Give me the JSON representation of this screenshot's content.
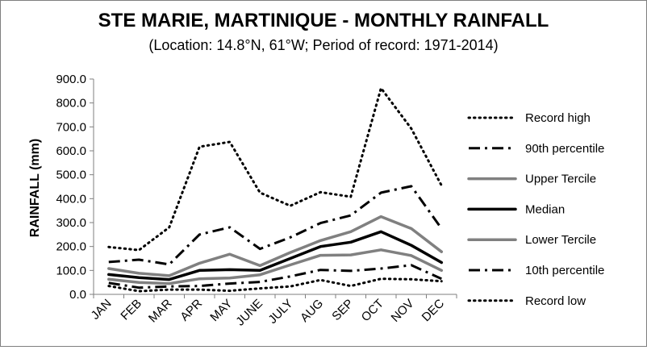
{
  "chart_data": {
    "type": "line",
    "title": "STE MARIE, MARTINIQUE - MONTHLY RAINFALL",
    "subtitle": "(Location: 14.8°N, 61°W; Period of record: 1971-2014)",
    "xlabel": "",
    "ylabel": "RAINFALL (mm)",
    "ylim": [
      0,
      900
    ],
    "y_ticks": [
      "0.0",
      "100.0",
      "200.0",
      "300.0",
      "400.0",
      "500.0",
      "600.0",
      "700.0",
      "800.0",
      "900.0"
    ],
    "categories": [
      "JAN",
      "FEB",
      "MAR",
      "APR",
      "MAY",
      "JUNE",
      "JULY",
      "AUG",
      "SEP",
      "OCT",
      "NOV",
      "DEC"
    ],
    "grid": false,
    "legend_position": "right",
    "series": [
      {
        "name": "Record high",
        "style": "dotted",
        "color": "#000000",
        "values": [
          198,
          185,
          280,
          617,
          637,
          425,
          370,
          427,
          408,
          862,
          693,
          455
        ]
      },
      {
        "name": "90th percentile",
        "style": "dashdot",
        "color": "#000000",
        "values": [
          135,
          145,
          125,
          250,
          280,
          190,
          238,
          298,
          330,
          425,
          452,
          275
        ]
      },
      {
        "name": "Upper Tercile",
        "style": "solid-thick",
        "color": "#808080",
        "values": [
          108,
          88,
          78,
          130,
          168,
          120,
          175,
          225,
          262,
          325,
          275,
          178
        ]
      },
      {
        "name": "Median",
        "style": "solid-thick",
        "color": "#000000",
        "values": [
          83,
          70,
          62,
          100,
          103,
          100,
          150,
          200,
          218,
          262,
          205,
          133
        ]
      },
      {
        "name": "Lower Tercile",
        "style": "solid-thick",
        "color": "#808080",
        "values": [
          63,
          50,
          45,
          65,
          68,
          82,
          123,
          163,
          165,
          186,
          162,
          100
        ]
      },
      {
        "name": "10th percentile",
        "style": "dashdot",
        "color": "#000000",
        "values": [
          48,
          28,
          33,
          35,
          45,
          52,
          75,
          102,
          98,
          108,
          122,
          65
        ]
      },
      {
        "name": "Record low",
        "style": "dotted",
        "color": "#000000",
        "values": [
          35,
          13,
          20,
          20,
          15,
          25,
          33,
          60,
          35,
          65,
          63,
          55
        ]
      }
    ]
  }
}
